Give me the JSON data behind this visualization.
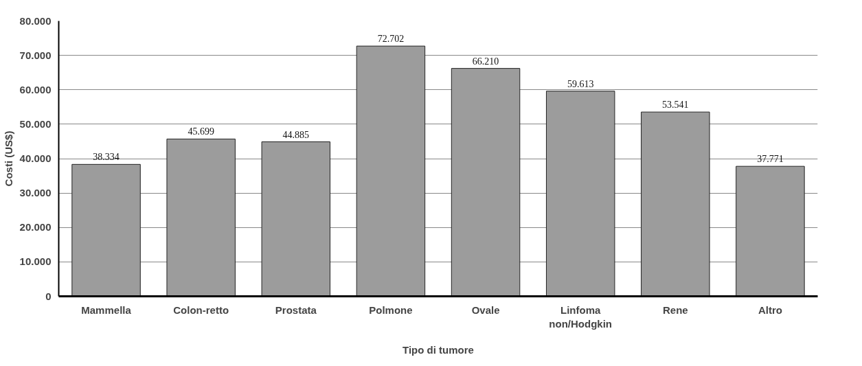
{
  "chart_data": {
    "type": "bar",
    "xlabel": "Tipo di tumore",
    "ylabel": "Costi (US$)",
    "categories": [
      "Mammella",
      "Colon-retto",
      "Prostata",
      "Polmone",
      "Ovale",
      "Linfoma non/Hodgkin",
      "Rene",
      "Altro"
    ],
    "values": [
      38334,
      45699,
      44885,
      72702,
      66210,
      59613,
      53541,
      37771
    ],
    "value_labels": [
      "38.334",
      "45.699",
      "44.885",
      "72.702",
      "66.210",
      "59.613",
      "53.541",
      "37.771"
    ],
    "color": "#9c9c9c",
    "ylim": [
      0,
      80000
    ],
    "yticks": [
      {
        "value": 0,
        "label": "0"
      },
      {
        "value": 10000,
        "label": "10.000"
      },
      {
        "value": 20000,
        "label": "20.000"
      },
      {
        "value": 30000,
        "label": "30.000"
      },
      {
        "value": 40000,
        "label": "40.000"
      },
      {
        "value": 50000,
        "label": "50.000"
      },
      {
        "value": 60000,
        "label": "60.000"
      },
      {
        "value": 70000,
        "label": "70.000"
      },
      {
        "value": 80000,
        "label": "80.000"
      }
    ],
    "grid": "y"
  }
}
